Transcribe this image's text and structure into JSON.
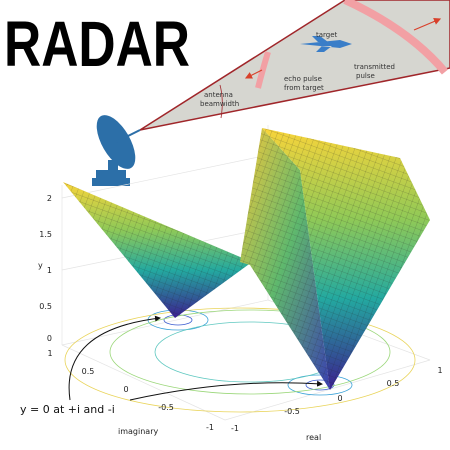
{
  "title": "RADAR",
  "diagram": {
    "target": "target",
    "transmitted_pulse": [
      "transmitted",
      "pulse"
    ],
    "echo_pulse": [
      "echo pulse",
      "from target"
    ],
    "antenna": [
      "antenna",
      "beamwidth"
    ]
  },
  "plot": {
    "y_label": "y",
    "y_ticks": [
      "2",
      "1.5",
      "1",
      "0.5",
      "0"
    ],
    "imag_label": "imaginary",
    "imag_ticks": [
      "1",
      "0.5",
      "0",
      "-0.5",
      "-1"
    ],
    "real_label": "real",
    "real_ticks": [
      "-1",
      "-0.5",
      "0",
      "0.5",
      "1"
    ],
    "annotation": "y = 0 at +i and -i"
  }
}
